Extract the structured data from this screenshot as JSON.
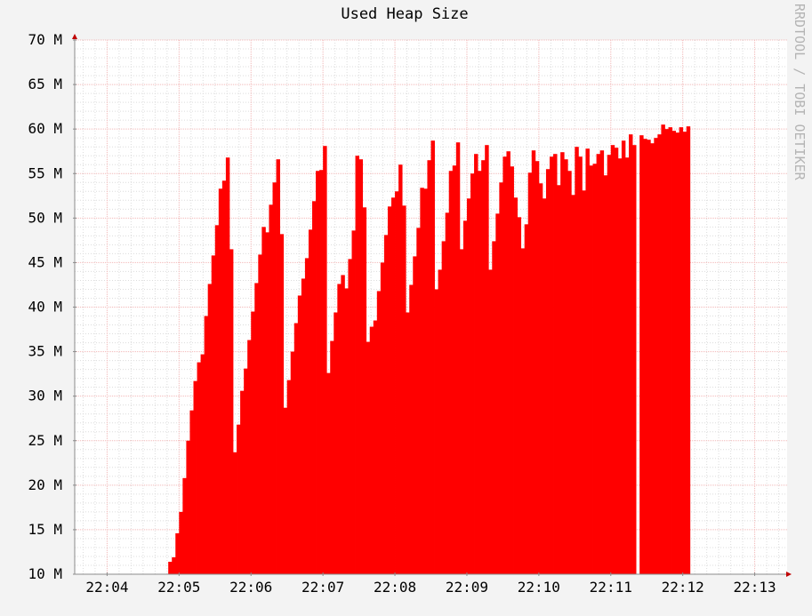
{
  "colors": {
    "background": "#f3f3f3",
    "canvas": "#ffffff",
    "area": "#ff0000",
    "grid_minor": "#dcdcdc",
    "grid_major": "#f2b7b7",
    "axis": "#8b8b8b",
    "arrow": "#c00000",
    "watermark": "#b4b4b4"
  },
  "watermark": "RRDTOOL / TOBI OETIKER",
  "chart_data": {
    "type": "area",
    "title": "Used Heap Size",
    "xlabel": "",
    "ylabel": "",
    "ylim": [
      10,
      70
    ],
    "y_ticks": [
      10,
      15,
      20,
      25,
      30,
      35,
      40,
      45,
      50,
      55,
      60,
      65,
      70
    ],
    "y_tick_labels": [
      "10 M",
      "15 M",
      "20 M",
      "25 M",
      "30 M",
      "35 M",
      "40 M",
      "45 M",
      "50 M",
      "55 M",
      "60 M",
      "65 M",
      "70 M"
    ],
    "x_tick_labels": [
      "22:04",
      "22:05",
      "22:06",
      "22:07",
      "22:08",
      "22:09",
      "22:10",
      "22:11",
      "22:12",
      "22:13"
    ],
    "x_tick_minutes": [
      4,
      5,
      6,
      7,
      8,
      9,
      10,
      11,
      12,
      13
    ],
    "xlim_minutes": [
      3.55,
      13.45
    ],
    "sample_step_seconds": 3,
    "x_start": "22:04:51",
    "units": "M",
    "grid": true,
    "values": [
      11.4,
      11.9,
      14.6,
      17.0,
      20.8,
      25.0,
      28.4,
      31.7,
      33.8,
      34.7,
      39.0,
      42.6,
      45.8,
      49.2,
      53.3,
      54.2,
      56.8,
      46.5,
      23.7,
      26.8,
      30.6,
      33.1,
      36.3,
      39.5,
      42.7,
      45.9,
      49.0,
      48.4,
      51.5,
      54.0,
      56.6,
      48.2,
      28.7,
      31.8,
      35.0,
      38.2,
      41.3,
      43.2,
      45.5,
      48.7,
      51.9,
      55.3,
      55.4,
      58.1,
      32.6,
      36.2,
      39.4,
      42.6,
      43.6,
      42.1,
      45.4,
      48.6,
      57.0,
      56.6,
      51.2,
      36.1,
      37.8,
      38.5,
      41.8,
      45.0,
      48.1,
      51.3,
      52.3,
      53.0,
      56.0,
      51.4,
      39.4,
      42.5,
      45.7,
      48.9,
      53.4,
      53.3,
      56.5,
      58.7,
      42.0,
      44.2,
      47.4,
      50.6,
      55.3,
      55.9,
      58.5,
      46.5,
      49.7,
      52.2,
      55.0,
      57.2,
      55.3,
      56.5,
      58.2,
      44.2,
      47.4,
      50.5,
      54.0,
      56.9,
      57.5,
      55.8,
      52.3,
      50.1,
      46.6,
      49.3,
      55.1,
      57.6,
      56.4,
      53.9,
      52.2,
      55.5,
      56.9,
      57.2,
      53.7,
      57.4,
      56.6,
      55.3,
      52.6,
      58.0,
      56.9,
      53.1,
      57.8,
      55.9,
      56.1,
      57.2,
      57.6,
      54.8,
      57.1,
      58.2,
      57.9,
      56.7,
      58.7,
      56.8,
      59.4,
      58.2,
      null,
      59.3,
      58.9,
      58.8,
      58.4,
      59.0,
      59.4,
      60.5,
      60.0,
      60.2,
      59.8,
      59.6,
      60.2,
      59.7,
      60.3
    ]
  }
}
